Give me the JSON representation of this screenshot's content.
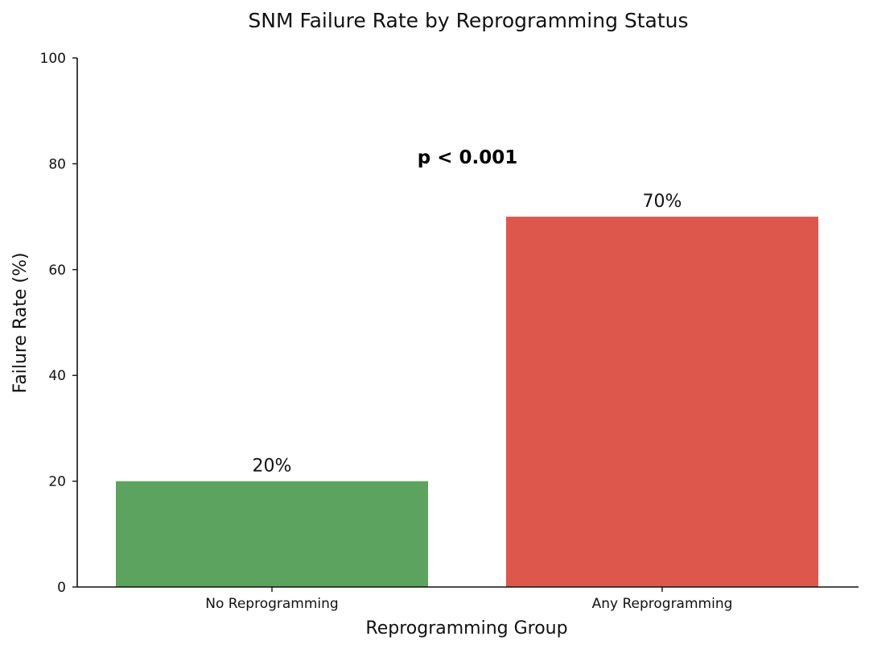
{
  "chart_data": {
    "type": "bar",
    "title": "SNM Failure Rate by Reprogramming Status",
    "xlabel": "Reprogramming Group",
    "ylabel": "Failure Rate (%)",
    "categories": [
      "No Reprogramming",
      "Any Reprogramming"
    ],
    "values": [
      20,
      70
    ],
    "data_labels": [
      "20%",
      "70%"
    ],
    "ylim": [
      0,
      100
    ],
    "yticks": [
      0,
      20,
      40,
      60,
      80,
      100
    ],
    "ytick_labels": [
      "0",
      "20",
      "40",
      "60",
      "80",
      "100"
    ],
    "annotation": "p < 0.001",
    "grid": false,
    "colors": [
      "#5ba35f",
      "#dd574d"
    ]
  }
}
